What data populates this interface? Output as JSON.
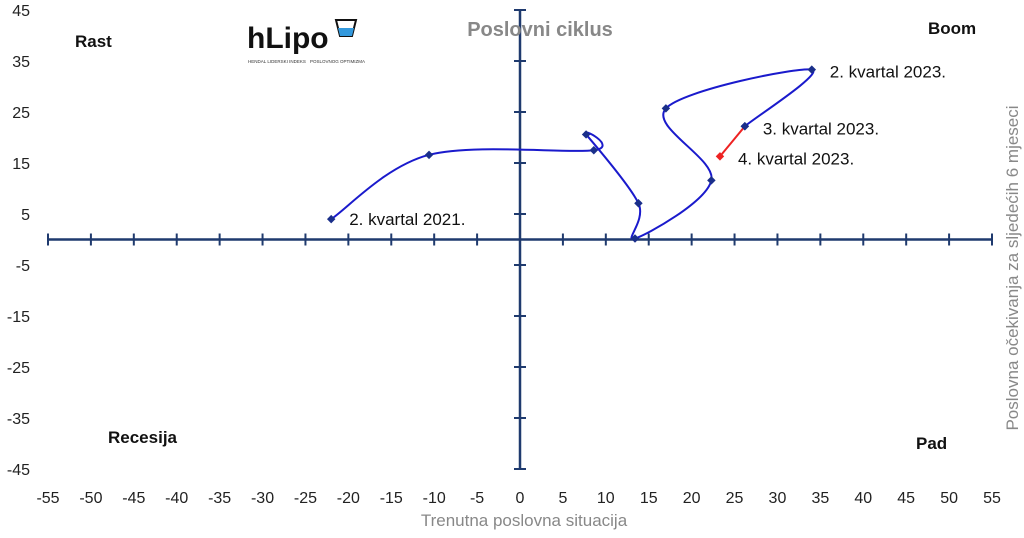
{
  "chart_data": {
    "type": "line",
    "title": "Poslovni ciklus",
    "xlabel": "Trenutna poslovna situacija",
    "ylabel": "Poslovna očekivanja za sljedećih 6 mjeseci",
    "xlim": [
      -55,
      55
    ],
    "ylim": [
      -45,
      45
    ],
    "xticks": [
      -55,
      -50,
      -45,
      -40,
      -35,
      -30,
      -25,
      -20,
      -15,
      -10,
      -5,
      0,
      5,
      10,
      15,
      20,
      25,
      30,
      35,
      40,
      45,
      50,
      55
    ],
    "yticks": [
      45,
      35,
      25,
      15,
      5,
      -5,
      -15,
      -25,
      -35,
      -45
    ],
    "grid": false,
    "quadrants": {
      "top_left": "Rast",
      "top_right": "Boom",
      "bottom_left": "Recesija",
      "bottom_right": "Pad"
    },
    "series": [
      {
        "color": "#1a1acc",
        "points": [
          [
            -22,
            4
          ],
          [
            -10.6,
            16.6
          ],
          [
            8.6,
            17.5
          ],
          [
            7.7,
            20.6
          ],
          [
            13.8,
            7.1
          ],
          [
            13.4,
            0.2
          ],
          [
            22.3,
            11.6
          ],
          [
            17,
            25.7
          ],
          [
            34,
            33.3
          ],
          [
            26.2,
            22.2
          ]
        ]
      },
      {
        "color": "#ee2222",
        "points": [
          [
            26.2,
            22.2
          ],
          [
            23.3,
            16.3
          ]
        ]
      }
    ],
    "annotations": [
      {
        "text": "2. kvartal 2021.",
        "x": -22,
        "y": 4
      },
      {
        "text": "2. kvartal 2023.",
        "x": 34,
        "y": 33.3
      },
      {
        "text": "3. kvartal 2023.",
        "x": 26.2,
        "y": 22.2
      },
      {
        "text": "4. kvartal 2023.",
        "x": 23.3,
        "y": 16.3
      }
    ]
  },
  "logo": {
    "text": "hLipo",
    "subtitle": "HENDAL LIDERSKI INDEKS POSLOVNOG OPTIMIZMA"
  },
  "colors": {
    "axis": "#1f3a6e",
    "title": "#888888",
    "marker": "#1a2f8a"
  }
}
